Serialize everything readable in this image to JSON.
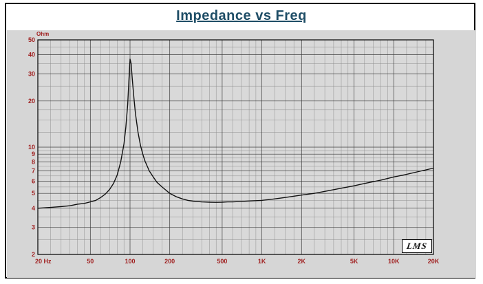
{
  "chart_data": {
    "type": "line",
    "title": "Impedance vs Freq",
    "ylabel": "Ohm",
    "xlabel": "",
    "x_scale": "log",
    "y_scale": "log",
    "xlim": [
      20,
      20000
    ],
    "ylim": [
      2,
      50
    ],
    "grid": "log-log with minor divisions",
    "legend_position": "none",
    "logo": "LMS",
    "x_ticks": [
      {
        "v": 20,
        "label": "20 Hz"
      },
      {
        "v": 50,
        "label": "50"
      },
      {
        "v": 100,
        "label": "100"
      },
      {
        "v": 200,
        "label": "200"
      },
      {
        "v": 500,
        "label": "500"
      },
      {
        "v": 1000,
        "label": "1K"
      },
      {
        "v": 2000,
        "label": "2K"
      },
      {
        "v": 5000,
        "label": "5K"
      },
      {
        "v": 10000,
        "label": "10K"
      },
      {
        "v": 20000,
        "label": "20K"
      }
    ],
    "y_ticks": [
      50,
      40,
      30,
      20,
      10,
      9,
      8,
      7,
      6,
      5,
      4,
      3,
      2
    ],
    "series": [
      {
        "name": "Impedance",
        "color": "#111111",
        "x": [
          20,
          25,
          30,
          35,
          40,
          45,
          50,
          55,
          60,
          65,
          70,
          75,
          80,
          85,
          90,
          93,
          96,
          98,
          100,
          102,
          104,
          107,
          110,
          115,
          120,
          125,
          130,
          140,
          150,
          160,
          175,
          200,
          225,
          250,
          275,
          300,
          350,
          400,
          450,
          500,
          550,
          600,
          700,
          800,
          900,
          1000,
          1200,
          1500,
          2000,
          2500,
          3000,
          4000,
          5000,
          6000,
          8000,
          10000,
          12000,
          15000,
          20000
        ],
        "y": [
          4.0,
          4.05,
          4.1,
          4.15,
          4.25,
          4.3,
          4.4,
          4.5,
          4.7,
          4.95,
          5.3,
          5.8,
          6.6,
          8.0,
          10.5,
          13.5,
          19,
          27,
          37.5,
          35,
          28,
          21,
          16.5,
          12.5,
          10.3,
          9.0,
          8.1,
          7.0,
          6.4,
          5.9,
          5.5,
          5.0,
          4.75,
          4.6,
          4.5,
          4.45,
          4.4,
          4.38,
          4.37,
          4.38,
          4.4,
          4.4,
          4.43,
          4.46,
          4.48,
          4.5,
          4.58,
          4.7,
          4.87,
          5.0,
          5.15,
          5.4,
          5.6,
          5.8,
          6.1,
          6.4,
          6.6,
          6.9,
          7.3
        ]
      }
    ],
    "colors": {
      "axis_label": "#a02020",
      "title": "#1e4d66",
      "panel_bg": "#d6d6d6",
      "plot_bg": "#d9d9d9",
      "grid_minor": "#8f8f8f",
      "grid_major": "#3a3a3a",
      "curve": "#111111"
    }
  }
}
